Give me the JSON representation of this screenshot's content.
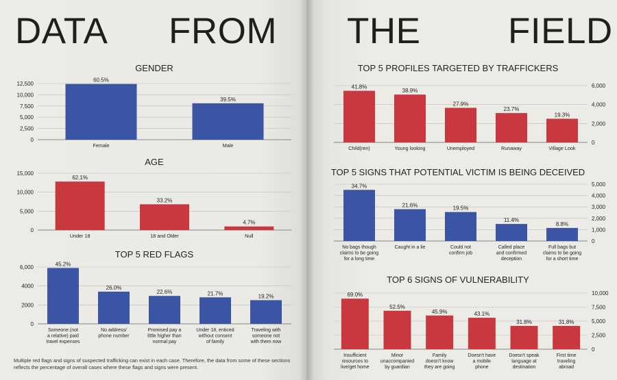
{
  "headline": {
    "word1": "DATA",
    "word2": "FROM",
    "word3": "THE",
    "word4": "FIELD"
  },
  "footnote": "Multiple red flags and signs of suspected trafficking can exist in each case. Therefore, the data from some of these sections reflects the percentage of overall cases where these flags and signs were present.",
  "colors": {
    "blue": "#3a55a4",
    "red": "#c9383e",
    "grid": "#bdbcb7",
    "axis": "#555555"
  },
  "chart_data": [
    {
      "id": "gender",
      "type": "bar",
      "title": "GENDER",
      "categories": [
        "Female",
        "Male"
      ],
      "values": [
        12400,
        8100
      ],
      "labels": [
        "60.5%",
        "39.5%"
      ],
      "colors": [
        "blue",
        "blue"
      ],
      "ylim": [
        0,
        12500
      ],
      "ticks": [
        0,
        2500,
        5000,
        7500,
        10000,
        12500
      ],
      "tick_labels": [
        "0",
        "2,500",
        "5,000",
        "7,500",
        "10,000",
        "12,500"
      ],
      "axis_side": "left"
    },
    {
      "id": "age",
      "type": "bar",
      "title": "AGE",
      "categories": [
        "Under 18",
        "18 and Older",
        "Null"
      ],
      "values": [
        12800,
        6800,
        950
      ],
      "labels": [
        "62.1%",
        "33.2%",
        "4.7%"
      ],
      "colors": [
        "red",
        "red",
        "red"
      ],
      "ylim": [
        0,
        15000
      ],
      "ticks": [
        0,
        5000,
        10000,
        15000
      ],
      "tick_labels": [
        "0",
        "5,000",
        "10,000",
        "15,000"
      ],
      "axis_side": "left"
    },
    {
      "id": "redflags",
      "type": "bar",
      "title": "TOP 5 RED FLAGS",
      "categories": [
        [
          "Someone (not",
          "a relative) paid",
          "travel expenses"
        ],
        [
          "No address/",
          "phone number"
        ],
        [
          "Promised pay a",
          "little higher than",
          "normal pay"
        ],
        [
          "Under 18, enticed",
          "without consent",
          "of family"
        ],
        [
          "Traveling with",
          "someone not",
          "with them now"
        ]
      ],
      "values": [
        5900,
        3400,
        2950,
        2800,
        2500
      ],
      "labels": [
        "45.2%",
        "26.0%",
        "22.6%",
        "21.7%",
        "19.2%"
      ],
      "colors": [
        "blue",
        "blue",
        "blue",
        "blue",
        "blue"
      ],
      "ylim": [
        0,
        6000
      ],
      "ticks": [
        0,
        2000,
        4000,
        6000
      ],
      "tick_labels": [
        "0",
        "2000",
        "4000",
        "6,000"
      ],
      "axis_side": "left"
    },
    {
      "id": "profiles",
      "type": "bar",
      "title": "TOP 5 PROFILES TARGETED BY TRAFFICKERS",
      "categories": [
        "Child(ren)",
        "Young looking",
        "Unemployed",
        "Runaway",
        "Village Look"
      ],
      "values": [
        5450,
        5050,
        3650,
        3100,
        2500
      ],
      "labels": [
        "41.8%",
        "38.9%",
        "27.9%",
        "23.7%",
        "19.3%"
      ],
      "colors": [
        "red",
        "red",
        "red",
        "red",
        "red"
      ],
      "ylim": [
        0,
        6000
      ],
      "ticks": [
        0,
        2000,
        4000,
        6000
      ],
      "tick_labels": [
        "0",
        "2,000",
        "4,000",
        "6,000"
      ],
      "axis_side": "right"
    },
    {
      "id": "deceived",
      "type": "bar",
      "title": "TOP 5 SIGNS THAT POTENTIAL VICTIM IS BEING DECEIVED",
      "categories": [
        [
          "No bags though",
          "claims to be going",
          "for a long time"
        ],
        [
          "Caught in a lie"
        ],
        [
          "Could not",
          "confirm job"
        ],
        [
          "Called place",
          "and confirmed",
          "deception"
        ],
        [
          "Full bags but",
          "claims to be going",
          "for a short time"
        ]
      ],
      "values": [
        4500,
        2800,
        2550,
        1500,
        1150
      ],
      "labels": [
        "34.7%",
        "21.6%",
        "19.5%",
        "11.4%",
        "8.8%"
      ],
      "colors": [
        "blue",
        "blue",
        "blue",
        "blue",
        "blue"
      ],
      "ylim": [
        0,
        5000
      ],
      "ticks": [
        0,
        1000,
        2000,
        3000,
        4000,
        5000
      ],
      "tick_labels": [
        "0",
        "1,000",
        "2,000",
        "3,000",
        "4,000",
        "5,000"
      ],
      "axis_side": "right"
    },
    {
      "id": "vulnerability",
      "type": "bar",
      "title": "TOP 6 SIGNS OF VULNERABILITY",
      "categories": [
        [
          "Insufficient",
          "resources to",
          "live/get home"
        ],
        [
          "Minor",
          "unaccompanied",
          "by guardian"
        ],
        [
          "Family",
          "doesn't know",
          "they are going"
        ],
        [
          "Doesn't have",
          "a mobile",
          "phone"
        ],
        [
          "Doesn't speak",
          "language at",
          "destination"
        ],
        [
          "First time",
          "traveling",
          "abroad"
        ]
      ],
      "values": [
        9000,
        6850,
        6000,
        5600,
        4150,
        4150
      ],
      "labels": [
        "69.0%",
        "52.5%",
        "45.9%",
        "43.1%",
        "31.8%",
        "31.8%"
      ],
      "colors": [
        "red",
        "red",
        "red",
        "red",
        "red",
        "red"
      ],
      "ylim": [
        0,
        10000
      ],
      "ticks": [
        0,
        2500,
        5000,
        7500,
        10000
      ],
      "tick_labels": [
        "0",
        "2,500",
        "5,000",
        "7,500",
        "10,000"
      ],
      "axis_side": "right"
    }
  ]
}
